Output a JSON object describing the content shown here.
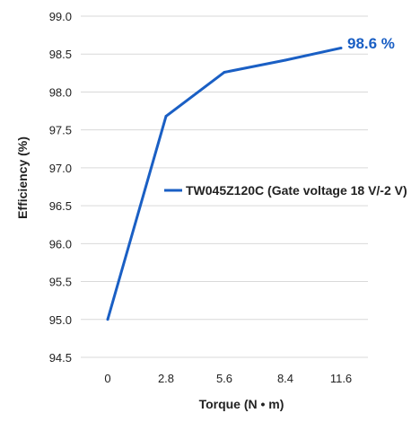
{
  "chart_data": {
    "type": "line",
    "xlabel": "Torque (N • m)",
    "ylabel": "Efficiency (%)",
    "x_ticks": [
      "0",
      "2.8",
      "5.6",
      "8.4",
      "11.6"
    ],
    "y_ticks": [
      "99.0",
      "98.5",
      "98.0",
      "97.5",
      "97.0",
      "96.5",
      "96.0",
      "95.5",
      "95.0",
      "94.5"
    ],
    "ylim": [
      94.5,
      99.0
    ],
    "grid": "horizontal",
    "series": [
      {
        "name": "TW045Z120C (Gate voltage 18 V/-2 V)",
        "x": [
          "0",
          "2.8",
          "5.6",
          "8.4",
          "11.6"
        ],
        "y": [
          95.0,
          97.68,
          98.26,
          98.42,
          98.58
        ],
        "color": "#1a5fc4"
      }
    ],
    "annotations": [
      {
        "text": "98.6 %",
        "x": "11.6",
        "y": 98.58,
        "color": "#1a5fc4"
      }
    ]
  }
}
